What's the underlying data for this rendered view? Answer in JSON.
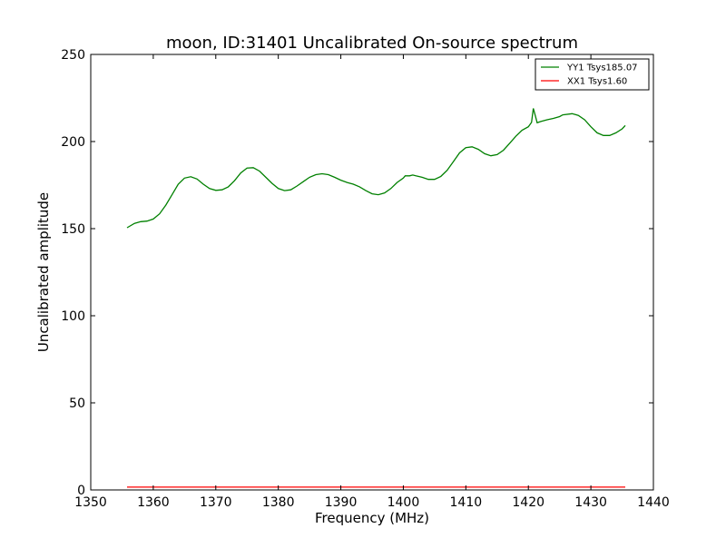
{
  "chart_data": {
    "type": "line",
    "title": "moon, ID:31401 Uncalibrated On-source spectrum",
    "xlabel": "Frequency (MHz)",
    "ylabel": "Uncalibrated amplitude",
    "xlim": [
      1350,
      1440
    ],
    "ylim": [
      0,
      250
    ],
    "xticks": [
      "1350",
      "1360",
      "1370",
      "1380",
      "1390",
      "1400",
      "1410",
      "1420",
      "1430",
      "1440"
    ],
    "yticks": [
      "0",
      "50",
      "100",
      "150",
      "200",
      "250"
    ],
    "grid": false,
    "legend_position": "top-right",
    "series": [
      {
        "name": "YY1 Tsys185.07",
        "color": "#008000",
        "points": [
          [
            1355.8,
            150.5
          ],
          [
            1357.0,
            153.0
          ],
          [
            1358.0,
            154.0
          ],
          [
            1359.0,
            154.3
          ],
          [
            1360.0,
            155.5
          ],
          [
            1361.0,
            158.5
          ],
          [
            1362.0,
            163.5
          ],
          [
            1363.0,
            169.5
          ],
          [
            1364.0,
            175.5
          ],
          [
            1365.0,
            179.0
          ],
          [
            1366.0,
            179.8
          ],
          [
            1367.0,
            178.5
          ],
          [
            1368.0,
            175.5
          ],
          [
            1369.0,
            173.0
          ],
          [
            1370.0,
            172.0
          ],
          [
            1371.0,
            172.3
          ],
          [
            1372.0,
            174.0
          ],
          [
            1373.0,
            177.5
          ],
          [
            1374.0,
            182.0
          ],
          [
            1375.0,
            184.8
          ],
          [
            1376.0,
            185.0
          ],
          [
            1377.0,
            183.0
          ],
          [
            1378.0,
            179.5
          ],
          [
            1379.0,
            176.0
          ],
          [
            1380.0,
            173.0
          ],
          [
            1381.0,
            171.8
          ],
          [
            1382.0,
            172.3
          ],
          [
            1383.0,
            174.5
          ],
          [
            1384.0,
            177.0
          ],
          [
            1385.0,
            179.5
          ],
          [
            1386.0,
            181.0
          ],
          [
            1387.0,
            181.5
          ],
          [
            1388.0,
            181.0
          ],
          [
            1389.0,
            179.5
          ],
          [
            1390.0,
            177.8
          ],
          [
            1391.0,
            176.5
          ],
          [
            1392.0,
            175.5
          ],
          [
            1393.0,
            174.0
          ],
          [
            1394.0,
            171.8
          ],
          [
            1395.0,
            170.0
          ],
          [
            1396.0,
            169.5
          ],
          [
            1397.0,
            170.5
          ],
          [
            1398.0,
            173.0
          ],
          [
            1399.0,
            176.5
          ],
          [
            1400.0,
            179.0
          ],
          [
            1400.3,
            180.3
          ],
          [
            1401.0,
            180.3
          ],
          [
            1401.5,
            180.8
          ],
          [
            1402.0,
            180.3
          ],
          [
            1403.0,
            179.5
          ],
          [
            1404.0,
            178.3
          ],
          [
            1405.0,
            178.3
          ],
          [
            1406.0,
            180.0
          ],
          [
            1407.0,
            183.5
          ],
          [
            1408.0,
            188.5
          ],
          [
            1409.0,
            193.5
          ],
          [
            1410.0,
            196.5
          ],
          [
            1411.0,
            197.0
          ],
          [
            1412.0,
            195.5
          ],
          [
            1413.0,
            193.0
          ],
          [
            1414.0,
            191.8
          ],
          [
            1415.0,
            192.5
          ],
          [
            1416.0,
            195.0
          ],
          [
            1417.0,
            199.0
          ],
          [
            1418.0,
            203.0
          ],
          [
            1419.0,
            206.5
          ],
          [
            1420.0,
            208.5
          ],
          [
            1420.5,
            211.0
          ],
          [
            1420.8,
            219.0
          ],
          [
            1421.1,
            215.0
          ],
          [
            1421.4,
            210.8
          ],
          [
            1422.0,
            211.5
          ],
          [
            1423.0,
            212.5
          ],
          [
            1424.0,
            213.3
          ],
          [
            1425.0,
            214.3
          ],
          [
            1425.5,
            215.3
          ],
          [
            1427.0,
            216.0
          ],
          [
            1428.0,
            215.0
          ],
          [
            1429.0,
            212.5
          ],
          [
            1430.0,
            208.5
          ],
          [
            1431.0,
            205.0
          ],
          [
            1432.0,
            203.5
          ],
          [
            1433.0,
            203.5
          ],
          [
            1434.0,
            205.0
          ],
          [
            1435.0,
            207.3
          ],
          [
            1435.5,
            209.2
          ]
        ]
      },
      {
        "name": "XX1 Tsys1.60",
        "color": "#ff0000",
        "points": [
          [
            1355.8,
            1.6
          ],
          [
            1380.0,
            1.6
          ],
          [
            1400.0,
            1.6
          ],
          [
            1420.0,
            1.6
          ],
          [
            1435.5,
            1.6
          ]
        ]
      }
    ]
  }
}
